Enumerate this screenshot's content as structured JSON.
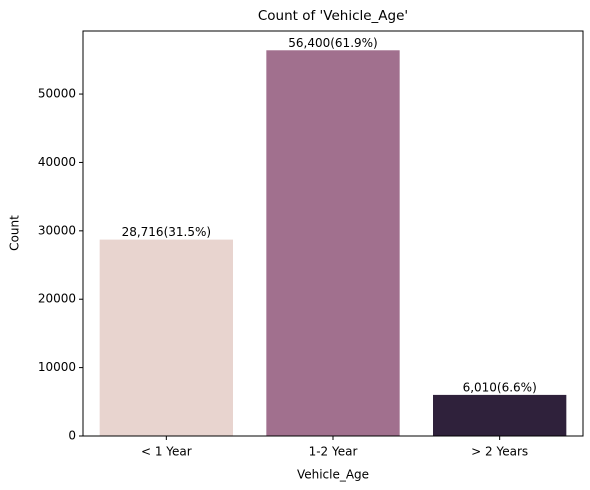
{
  "chart_data": {
    "type": "bar",
    "title": "Count of 'Vehicle_Age'",
    "x_label": "Vehicle_Age",
    "y_label": "Count",
    "categories": [
      "< 1 Year",
      "1-2 Year",
      "> 2 Years"
    ],
    "values": [
      28716,
      56400,
      6010
    ],
    "value_labels": [
      "28,716(31.5%)",
      "56,400(61.9%)",
      "6,010(6.6%)"
    ],
    "colors": [
      "#e8d4cf",
      "#a1708e",
      "#2f213b"
    ],
    "ylim": [
      0,
      59220
    ],
    "yticks": [
      0,
      10000,
      20000,
      30000,
      40000,
      50000
    ],
    "grid": false
  }
}
